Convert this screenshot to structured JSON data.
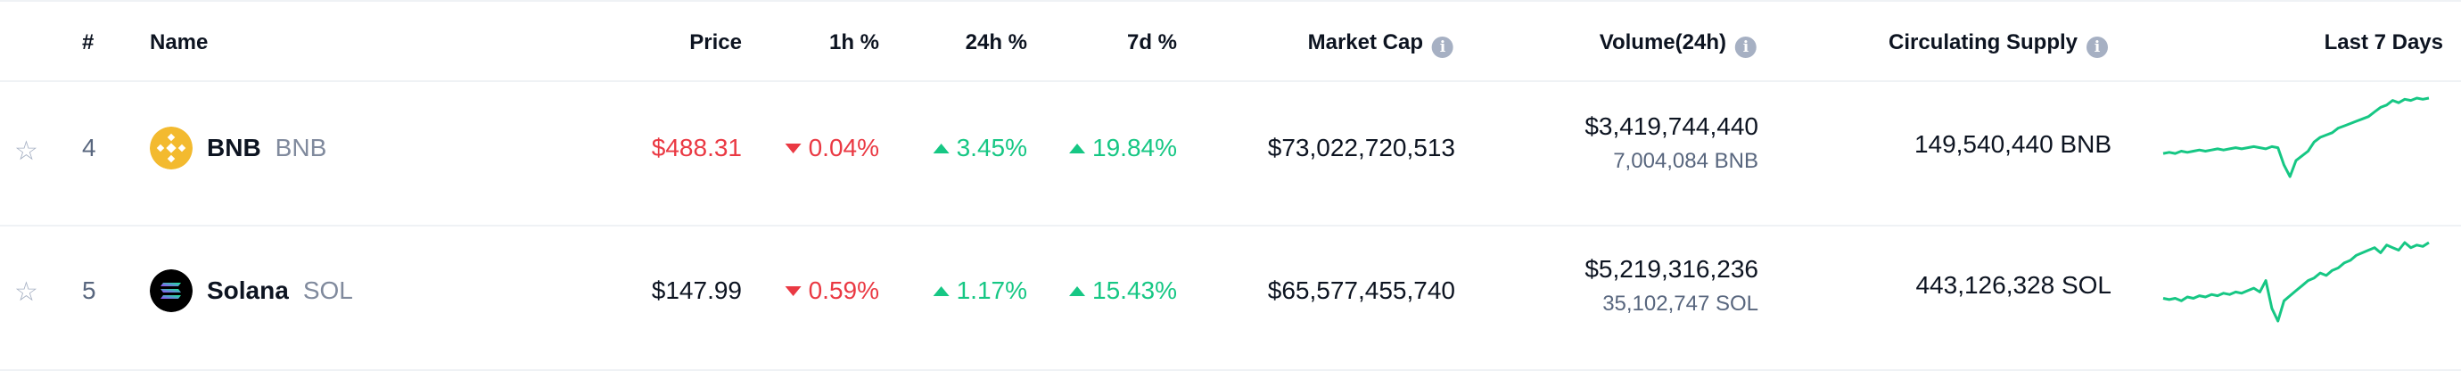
{
  "header": {
    "rank": "#",
    "name": "Name",
    "price": "Price",
    "change_1h": "1h %",
    "change_24h": "24h %",
    "change_7d": "7d %",
    "market_cap": "Market Cap",
    "volume": "Volume(24h)",
    "supply": "Circulating Supply",
    "last7": "Last 7 Days"
  },
  "icons": {
    "info": "info-icon",
    "star": "star-outline-icon",
    "caret_up": "caret-up-icon",
    "caret_down": "caret-down-icon"
  },
  "colors": {
    "negative": "#ea3943",
    "positive": "#16c784",
    "sparkline": "#16c784",
    "bnb_logo": "#f3ba2f",
    "sol_logo": "#000000"
  },
  "rows": [
    {
      "rank": "4",
      "name": "BNB",
      "symbol": "BNB",
      "price": "$488.31",
      "change_1h": "0.04%",
      "change_1h_dir": "down",
      "change_24h": "3.45%",
      "change_24h_dir": "up",
      "change_7d": "19.84%",
      "change_7d_dir": "up",
      "market_cap": "$73,022,720,513",
      "volume_usd": "$3,419,744,440",
      "volume_coin": "7,004,084 BNB",
      "supply": "149,540,440 BNB",
      "sparkline": [
        20,
        21,
        20,
        22,
        21,
        22,
        23,
        22,
        23,
        24,
        23,
        24,
        25,
        24,
        25,
        26,
        25,
        24,
        26,
        25,
        10,
        0,
        14,
        18,
        22,
        30,
        34,
        36,
        38,
        42,
        44,
        46,
        48,
        50,
        52,
        56,
        60,
        62,
        66,
        64,
        67,
        66,
        68,
        67,
        68
      ]
    },
    {
      "rank": "5",
      "name": "Solana",
      "symbol": "SOL",
      "price": "$147.99",
      "change_1h": "0.59%",
      "change_1h_dir": "down",
      "change_24h": "1.17%",
      "change_24h_dir": "up",
      "change_7d": "15.43%",
      "change_7d_dir": "up",
      "market_cap": "$65,577,455,740",
      "volume_usd": "$5,219,316,236",
      "volume_coin": "35,102,747 SOL",
      "supply": "443,126,328 SOL",
      "sparkline": [
        22,
        21,
        22,
        20,
        23,
        22,
        24,
        23,
        25,
        24,
        26,
        25,
        27,
        26,
        28,
        30,
        27,
        36,
        14,
        4,
        20,
        24,
        28,
        32,
        36,
        38,
        42,
        40,
        44,
        46,
        50,
        52,
        56,
        58,
        60,
        62,
        58,
        64,
        62,
        60,
        66,
        62,
        64,
        63,
        66
      ]
    }
  ]
}
